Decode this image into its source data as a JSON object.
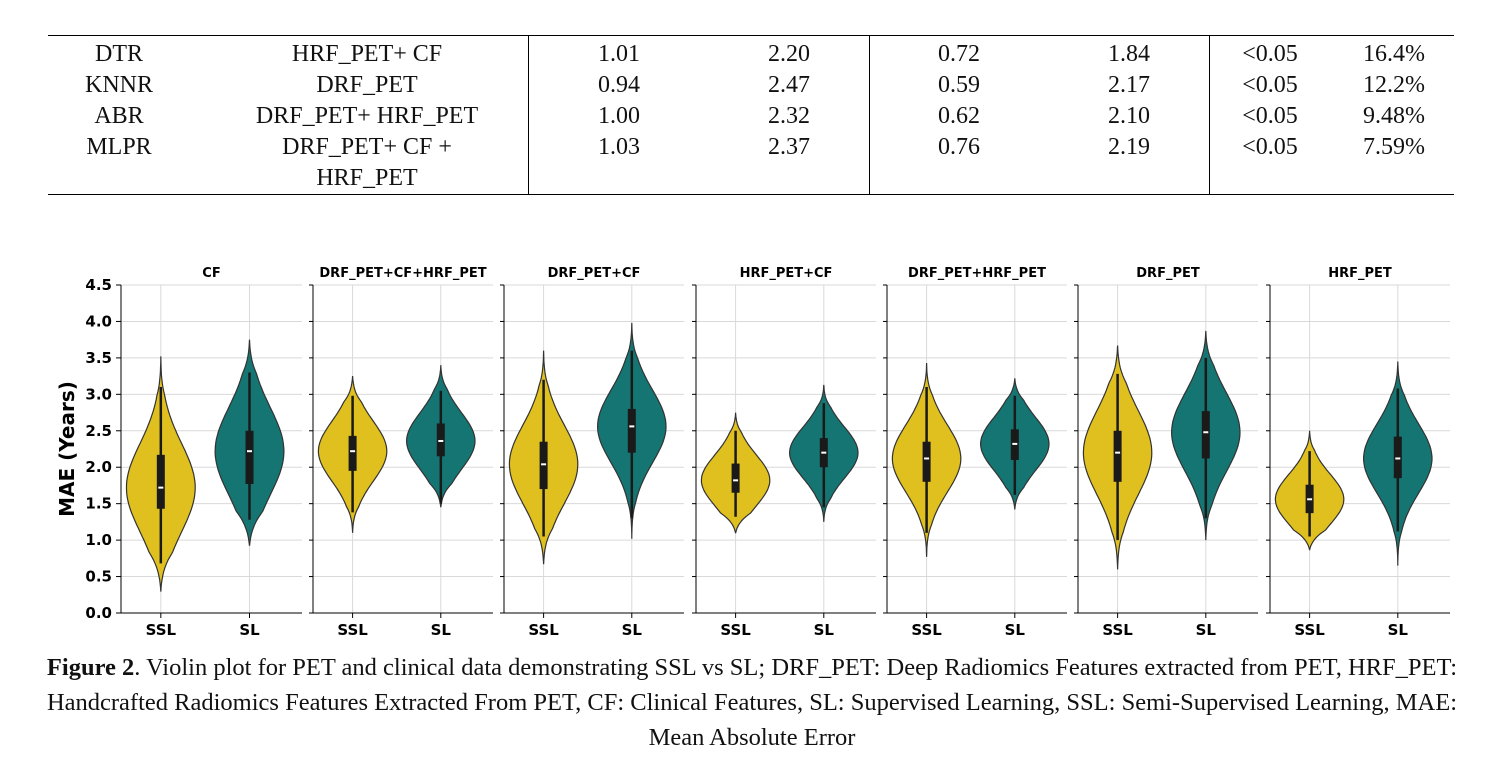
{
  "table": {
    "rows": [
      {
        "model": "DTR",
        "features": [
          "HRF_PET+ CF"
        ],
        "v1": "1.01",
        "v2": "2.20",
        "v3": "0.72",
        "v4": "1.84",
        "p": "<0.05",
        "imp": "16.4%"
      },
      {
        "model": "KNNR",
        "features": [
          "DRF_PET"
        ],
        "v1": "0.94",
        "v2": "2.47",
        "v3": "0.59",
        "v4": "2.17",
        "p": "<0.05",
        "imp": "12.2%"
      },
      {
        "model": "ABR",
        "features": [
          "DRF_PET+ HRF_PET"
        ],
        "v1": "1.00",
        "v2": "2.32",
        "v3": "0.62",
        "v4": "2.10",
        "p": "<0.05",
        "imp": "9.48%"
      },
      {
        "model": "MLPR",
        "features": [
          "DRF_PET+ CF +",
          "HRF_PET"
        ],
        "v1": "1.03",
        "v2": "2.37",
        "v3": "0.76",
        "v4": "2.19",
        "p": "<0.05",
        "imp": "7.59%"
      }
    ]
  },
  "colors": {
    "ssl": "#e0c01f",
    "sl": "#147572",
    "outline": "#333333",
    "grid": "#d9d9d9"
  },
  "chart_data": {
    "type": "violin",
    "ylabel": "MAE (Years)",
    "ylim": [
      0,
      4.5
    ],
    "yticks": [
      "0.0",
      "0.5",
      "1.0",
      "1.5",
      "2.0",
      "2.5",
      "3.0",
      "3.5",
      "4.0",
      "4.5"
    ],
    "categories": [
      "SSL",
      "SL"
    ],
    "grid": true,
    "panels": [
      {
        "title": "CF",
        "SSL": {
          "min": 0.3,
          "max": 3.52,
          "median": 1.72,
          "q1": 1.43,
          "q3": 2.17,
          "wlo": 0.68,
          "whi": 3.1
        },
        "SL": {
          "min": 0.93,
          "max": 3.75,
          "median": 2.22,
          "q1": 1.77,
          "q3": 2.5,
          "wlo": 1.28,
          "whi": 3.3
        }
      },
      {
        "title": "DRF_PET+CF+HRF_PET",
        "SSL": {
          "min": 1.1,
          "max": 3.25,
          "median": 2.22,
          "q1": 1.95,
          "q3": 2.43,
          "wlo": 1.38,
          "whi": 2.98
        },
        "SL": {
          "min": 1.45,
          "max": 3.4,
          "median": 2.36,
          "q1": 2.15,
          "q3": 2.6,
          "wlo": 1.5,
          "whi": 3.05
        }
      },
      {
        "title": "DRF_PET+CF",
        "SSL": {
          "min": 0.67,
          "max": 3.6,
          "median": 2.04,
          "q1": 1.7,
          "q3": 2.35,
          "wlo": 1.05,
          "whi": 3.2
        },
        "SL": {
          "min": 1.02,
          "max": 3.98,
          "median": 2.56,
          "q1": 2.2,
          "q3": 2.8,
          "wlo": 1.3,
          "whi": 3.6
        }
      },
      {
        "title": "HRF_PET+CF",
        "SSL": {
          "min": 1.1,
          "max": 2.75,
          "median": 1.82,
          "q1": 1.65,
          "q3": 2.05,
          "wlo": 1.32,
          "whi": 2.5
        },
        "SL": {
          "min": 1.25,
          "max": 3.13,
          "median": 2.2,
          "q1": 2.0,
          "q3": 2.4,
          "wlo": 1.45,
          "whi": 2.88
        }
      },
      {
        "title": "DRF_PET+HRF_PET",
        "SSL": {
          "min": 0.77,
          "max": 3.43,
          "median": 2.12,
          "q1": 1.8,
          "q3": 2.35,
          "wlo": 1.1,
          "whi": 3.1
        },
        "SL": {
          "min": 1.42,
          "max": 3.22,
          "median": 2.32,
          "q1": 2.1,
          "q3": 2.52,
          "wlo": 1.62,
          "whi": 2.98
        }
      },
      {
        "title": "DRF_PET",
        "SSL": {
          "min": 0.6,
          "max": 3.67,
          "median": 2.2,
          "q1": 1.8,
          "q3": 2.5,
          "wlo": 1.0,
          "whi": 3.28
        },
        "SL": {
          "min": 1.0,
          "max": 3.87,
          "median": 2.48,
          "q1": 2.12,
          "q3": 2.77,
          "wlo": 1.3,
          "whi": 3.5
        }
      },
      {
        "title": "HRF_PET",
        "SSL": {
          "min": 0.87,
          "max": 2.5,
          "median": 1.56,
          "q1": 1.37,
          "q3": 1.76,
          "wlo": 1.05,
          "whi": 2.22
        },
        "SL": {
          "min": 0.65,
          "max": 3.45,
          "median": 2.12,
          "q1": 1.85,
          "q3": 2.42,
          "wlo": 1.12,
          "whi": 3.08
        }
      }
    ]
  },
  "caption": {
    "label": "Figure 2",
    "text": ". Violin plot for PET and clinical data demonstrating SSL vs SL; DRF_PET: Deep Radiomics Features extracted from PET, HRF_PET: Handcrafted Radiomics Features Extracted From PET, CF: Clinical Features, SL: Supervised Learning, SSL: Semi-Supervised Learning, MAE: Mean Absolute Error"
  }
}
